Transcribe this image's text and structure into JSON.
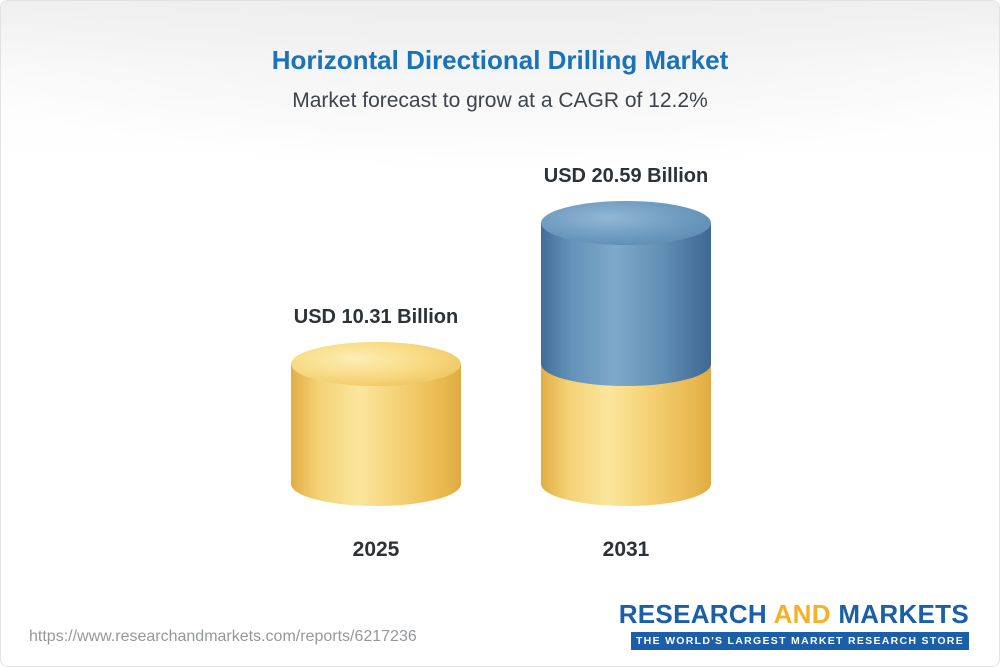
{
  "header": {
    "title": "Horizontal Directional Drilling Market",
    "subtitle": "Market forecast to grow at a CAGR of 12.2%"
  },
  "chart_data": {
    "type": "bar",
    "subtype": "3d-cylinder",
    "title": "Horizontal Directional Drilling Market",
    "subtitle": "Market forecast to grow at a CAGR of 12.2%",
    "cagr": "12.2%",
    "unit": "USD Billion",
    "categories": [
      "2025",
      "2031"
    ],
    "values": [
      10.31,
      20.59
    ],
    "value_labels": [
      "USD 10.31 Billion",
      "USD 20.59 Billion"
    ],
    "notes": "2031 cylinder is stacked: yellow base equal to 2025 value, blue top is growth",
    "colors": {
      "bar_2025": "#f2cd6e",
      "bar_2031_lower": "#f2cd6e",
      "bar_2031_upper": "#5f8db4",
      "title_text": "#1a72b8",
      "label_text": "#2d3237"
    },
    "legend": "none",
    "grid": false,
    "axes": "none"
  },
  "footer": {
    "url": "https://www.researchandmarkets.com/reports/6217236",
    "logo": {
      "part1": "RESEARCH",
      "part2": "AND",
      "part3": "MARKETS",
      "tagline": "THE WORLD'S LARGEST MARKET RESEARCH STORE"
    }
  }
}
